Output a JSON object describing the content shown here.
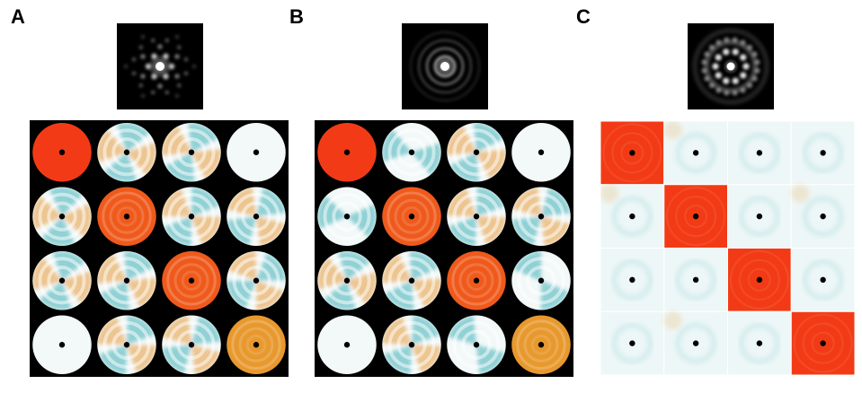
{
  "panels": [
    {
      "label": "A",
      "thumbnail": "diffraction-spot-pattern",
      "cell_style": "disc",
      "background": "#000000"
    },
    {
      "label": "B",
      "thumbnail": "diffraction-ring-pattern",
      "cell_style": "disc",
      "background": "#000000"
    },
    {
      "label": "C",
      "thumbnail": "diffraction-spot-ring-pattern",
      "cell_style": "square",
      "background": "#ffffff"
    }
  ],
  "colors": {
    "diag_red": "#f23b16",
    "diag_orange": "#ef5a1c",
    "diag_amber": "#e8992e",
    "warm": "#e79a3a",
    "cool": "#3fb0b8",
    "neutral": "#f3f8f8",
    "center_dot": "#000000"
  },
  "matrices": [
    [
      [
        "red",
        "neutral-cool",
        "warm-cool",
        "light"
      ],
      [
        "neutral-cool",
        "orange",
        "neutral-cool",
        "neutral-cool"
      ],
      [
        "neutral-cool",
        "neutral-cool",
        "orange",
        "neutral-cool"
      ],
      [
        "light",
        "neutral-cool",
        "neutral-cool",
        "amber"
      ]
    ],
    [
      [
        "red",
        "cool",
        "warm-cool",
        "light"
      ],
      [
        "cool",
        "orange",
        "neutral-cool",
        "warm-cool"
      ],
      [
        "warm-cool",
        "neutral-cool",
        "orange",
        "cool"
      ],
      [
        "light",
        "warm-cool",
        "cool",
        "amber"
      ]
    ],
    [
      [
        "red",
        "light",
        "light",
        "light"
      ],
      [
        "light",
        "red",
        "light",
        "light"
      ],
      [
        "light",
        "light",
        "red",
        "light"
      ],
      [
        "light",
        "light",
        "light",
        "red"
      ]
    ]
  ]
}
